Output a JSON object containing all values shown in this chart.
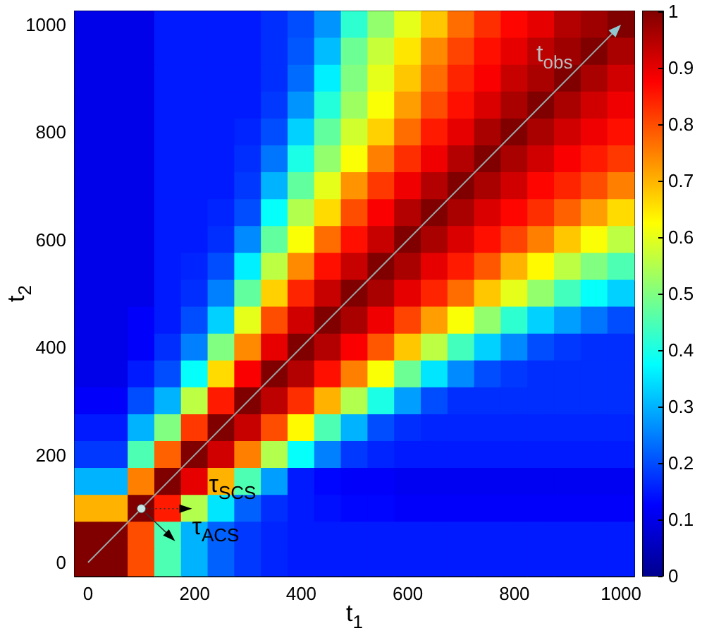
{
  "chart_data": {
    "type": "heatmap",
    "xlabel": "t$_{1}$",
    "ylabel": "t$_{2}$",
    "categories": [
      "0",
      null,
      null,
      null,
      "200",
      null,
      null,
      null,
      "400",
      null,
      null,
      null,
      "600",
      null,
      null,
      null,
      "800",
      null,
      null,
      null,
      "1000"
    ],
    "y_categories": [
      "1000",
      null,
      null,
      null,
      "800",
      null,
      null,
      null,
      "600",
      null,
      null,
      null,
      "400",
      null,
      null,
      null,
      "200",
      null,
      null,
      null,
      "0"
    ],
    "clim": [
      0,
      1
    ],
    "cticks": [
      0,
      0.1,
      0.2,
      0.3,
      0.4,
      0.5,
      0.6,
      0.7,
      0.8,
      0.9,
      1
    ],
    "cells": [
      [
        0.1,
        0.1,
        0.1,
        0.15,
        0.15,
        0.15,
        0.15,
        0.17,
        0.2,
        0.27,
        0.42,
        0.52,
        0.6,
        0.68,
        0.77,
        0.83,
        0.87,
        0.9,
        0.95,
        0.97,
        1
      ],
      [
        0.1,
        0.1,
        0.1,
        0.15,
        0.15,
        0.15,
        0.15,
        0.17,
        0.21,
        0.31,
        0.48,
        0.57,
        0.65,
        0.74,
        0.81,
        0.86,
        0.9,
        0.94,
        0.97,
        1,
        0.96
      ],
      [
        0.1,
        0.1,
        0.1,
        0.15,
        0.15,
        0.15,
        0.15,
        0.17,
        0.23,
        0.36,
        0.5,
        0.6,
        0.68,
        0.77,
        0.84,
        0.88,
        0.93,
        0.96,
        1,
        0.96,
        0.92
      ],
      [
        0.1,
        0.1,
        0.1,
        0.15,
        0.15,
        0.15,
        0.15,
        0.18,
        0.27,
        0.41,
        0.53,
        0.62,
        0.72,
        0.8,
        0.86,
        0.91,
        0.96,
        1,
        0.96,
        0.92,
        0.89
      ],
      [
        0.1,
        0.1,
        0.1,
        0.15,
        0.15,
        0.15,
        0.16,
        0.2,
        0.33,
        0.47,
        0.58,
        0.67,
        0.77,
        0.85,
        0.9,
        0.96,
        1,
        0.96,
        0.92,
        0.89,
        0.86
      ],
      [
        0.1,
        0.1,
        0.1,
        0.15,
        0.15,
        0.15,
        0.17,
        0.24,
        0.4,
        0.52,
        0.62,
        0.75,
        0.83,
        0.89,
        0.95,
        1,
        0.96,
        0.92,
        0.88,
        0.85,
        0.82
      ],
      [
        0.1,
        0.1,
        0.1,
        0.15,
        0.15,
        0.15,
        0.18,
        0.3,
        0.47,
        0.6,
        0.73,
        0.82,
        0.89,
        0.95,
        1,
        0.96,
        0.92,
        0.87,
        0.84,
        0.8,
        0.75
      ],
      [
        0.1,
        0.1,
        0.1,
        0.15,
        0.15,
        0.16,
        0.2,
        0.38,
        0.55,
        0.66,
        0.8,
        0.88,
        0.95,
        1,
        0.96,
        0.91,
        0.87,
        0.83,
        0.78,
        0.72,
        0.66
      ],
      [
        0.1,
        0.1,
        0.1,
        0.15,
        0.15,
        0.17,
        0.26,
        0.47,
        0.62,
        0.77,
        0.86,
        0.93,
        1,
        0.96,
        0.91,
        0.86,
        0.81,
        0.75,
        0.68,
        0.62,
        0.56
      ],
      [
        0.1,
        0.1,
        0.1,
        0.15,
        0.16,
        0.2,
        0.36,
        0.56,
        0.74,
        0.86,
        0.93,
        1,
        0.96,
        0.9,
        0.85,
        0.79,
        0.7,
        0.63,
        0.56,
        0.5,
        0.45
      ],
      [
        0.1,
        0.1,
        0.1,
        0.15,
        0.17,
        0.25,
        0.47,
        0.67,
        0.84,
        0.93,
        1,
        0.96,
        0.9,
        0.84,
        0.77,
        0.68,
        0.6,
        0.52,
        0.44,
        0.38,
        0.33
      ],
      [
        0.1,
        0.1,
        0.12,
        0.15,
        0.2,
        0.33,
        0.6,
        0.8,
        0.92,
        1,
        0.96,
        0.89,
        0.81,
        0.72,
        0.62,
        0.52,
        0.42,
        0.33,
        0.28,
        0.24,
        0.2
      ],
      [
        0.1,
        0.1,
        0.12,
        0.17,
        0.25,
        0.5,
        0.74,
        0.9,
        1,
        0.95,
        0.88,
        0.79,
        0.68,
        0.56,
        0.44,
        0.33,
        0.26,
        0.2,
        0.18,
        0.17,
        0.17
      ],
      [
        0.1,
        0.1,
        0.15,
        0.2,
        0.38,
        0.66,
        0.88,
        1,
        0.95,
        0.86,
        0.75,
        0.62,
        0.48,
        0.35,
        0.26,
        0.2,
        0.18,
        0.17,
        0.17,
        0.17,
        0.17
      ],
      [
        0.12,
        0.12,
        0.2,
        0.3,
        0.56,
        0.85,
        1,
        0.94,
        0.83,
        0.7,
        0.55,
        0.4,
        0.28,
        0.2,
        0.17,
        0.17,
        0.17,
        0.17,
        0.17,
        0.17,
        0.17
      ],
      [
        0.15,
        0.15,
        0.3,
        0.5,
        0.82,
        1,
        0.93,
        0.8,
        0.63,
        0.45,
        0.3,
        0.2,
        0.17,
        0.16,
        0.16,
        0.16,
        0.16,
        0.16,
        0.16,
        0.16,
        0.16
      ],
      [
        0.18,
        0.18,
        0.45,
        0.78,
        1,
        0.92,
        0.75,
        0.55,
        0.38,
        0.25,
        0.18,
        0.16,
        0.15,
        0.15,
        0.15,
        0.15,
        0.15,
        0.15,
        0.15,
        0.15,
        0.15
      ],
      [
        0.3,
        0.3,
        0.75,
        1,
        0.9,
        0.7,
        0.45,
        0.28,
        0.15,
        0.13,
        0.12,
        0.12,
        0.11,
        0.11,
        0.11,
        0.11,
        0.11,
        0.11,
        0.11,
        0.11,
        0.11
      ],
      [
        0.7,
        0.7,
        1,
        0.85,
        0.55,
        0.35,
        0.22,
        0.17,
        0.15,
        0.14,
        0.13,
        0.13,
        0.12,
        0.12,
        0.12,
        0.12,
        0.12,
        0.12,
        0.12,
        0.12,
        0.12
      ],
      [
        1,
        1,
        0.8,
        0.45,
        0.3,
        0.22,
        0.18,
        0.16,
        0.15,
        0.15,
        0.15,
        0.15,
        0.15,
        0.15,
        0.15,
        0.15,
        0.15,
        0.15,
        0.15,
        0.15,
        0.15
      ],
      [
        1,
        1,
        0.8,
        0.45,
        0.3,
        0.22,
        0.18,
        0.16,
        0.15,
        0.15,
        0.15,
        0.15,
        0.15,
        0.15,
        0.15,
        0.15,
        0.15,
        0.15,
        0.15,
        0.15,
        0.15
      ]
    ],
    "annotations": [
      "t$_{obs}$",
      "τ$_{SCS}$",
      "τ$_{ACS}$"
    ]
  }
}
